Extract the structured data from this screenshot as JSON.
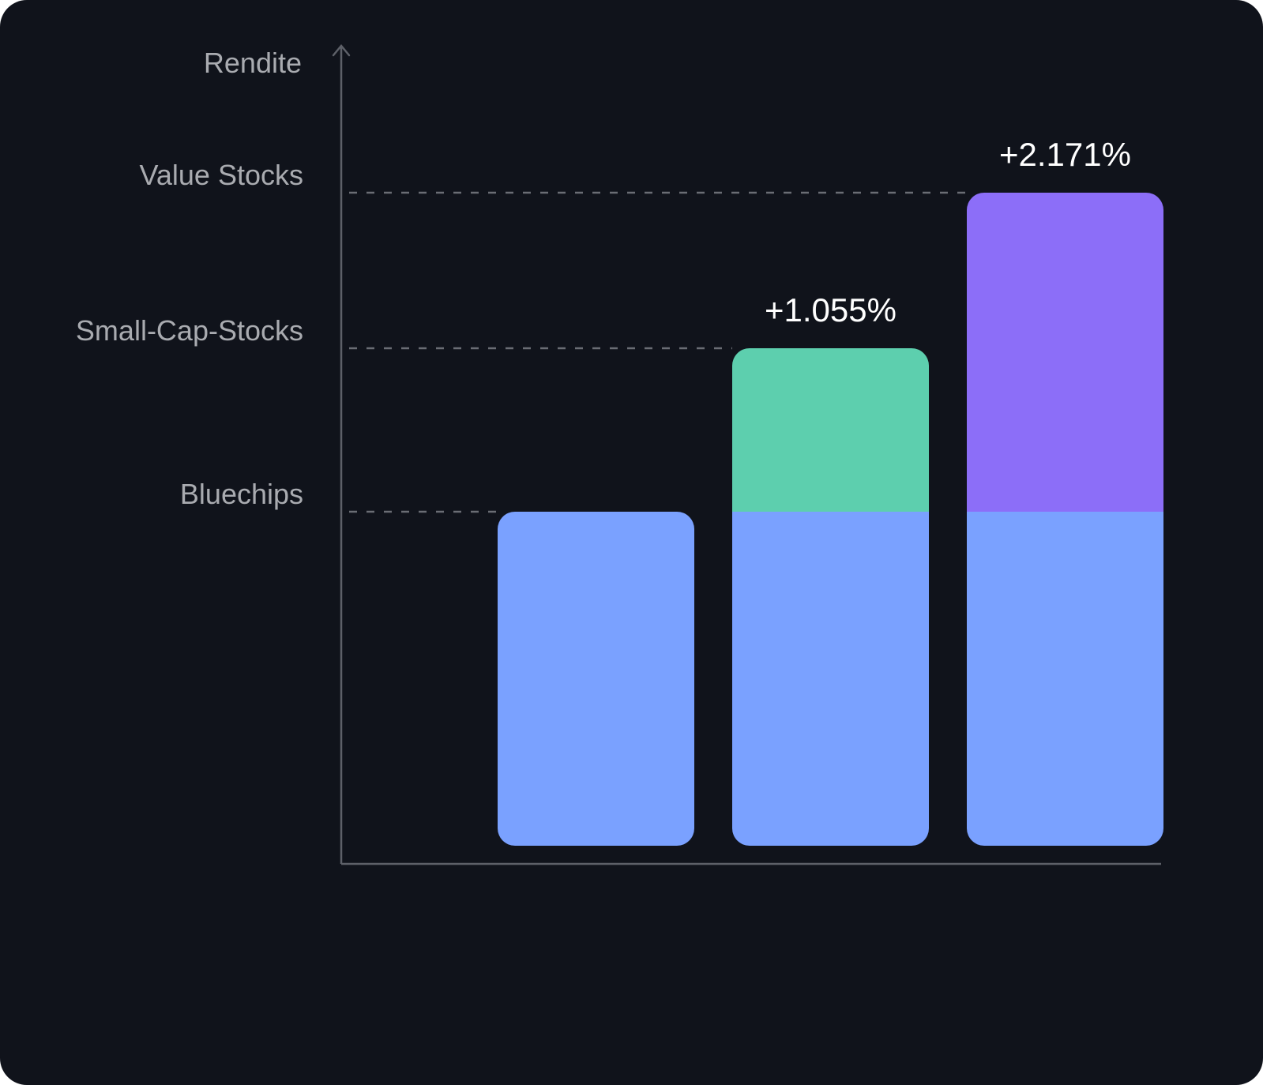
{
  "colors": {
    "background": "#10131b",
    "axis": "#5d6068",
    "grid": "#6a6d74",
    "label_text": "#a9abb0",
    "value_text": "#ffffff",
    "bluechips": "#7aa1ff",
    "small_cap": "#5dcfae",
    "value_stocks": "#8c6ef8"
  },
  "chart_data": {
    "type": "bar",
    "stacked": true,
    "ylabel": "Rendite",
    "y_reference_levels": [
      {
        "label": "Bluechips",
        "value": 1
      },
      {
        "label": "Small-Cap-Stocks",
        "value": 1.5
      },
      {
        "label": "Value Stocks",
        "value": 2
      }
    ],
    "ylim": [
      0,
      2.4
    ],
    "grid": false,
    "bars": [
      {
        "segments": [
          {
            "category": "Bluechips",
            "value": 1,
            "color": "#7aa1ff"
          }
        ],
        "total": 1,
        "label": ""
      },
      {
        "segments": [
          {
            "category": "Bluechips",
            "value": 1,
            "color": "#7aa1ff"
          },
          {
            "category": "Small-Cap-Stocks",
            "value": 0.5,
            "color": "#5dcfae"
          }
        ],
        "total": 1.5,
        "label": "+1.055%"
      },
      {
        "segments": [
          {
            "category": "Bluechips",
            "value": 1,
            "color": "#7aa1ff"
          },
          {
            "category": "Value Stocks",
            "value": 1,
            "color": "#8c6ef8"
          }
        ],
        "total": 2,
        "label": "+2.171%"
      }
    ]
  }
}
